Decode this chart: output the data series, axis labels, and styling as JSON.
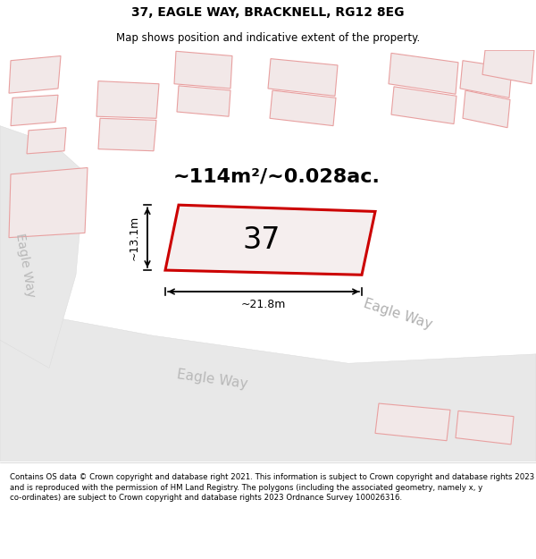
{
  "title": "37, EAGLE WAY, BRACKNELL, RG12 8EG",
  "subtitle": "Map shows position and indicative extent of the property.",
  "footer": "Contains OS data © Crown copyright and database right 2021. This information is subject to Crown copyright and database rights 2023 and is reproduced with the permission of HM Land Registry. The polygons (including the associated geometry, namely x, y co-ordinates) are subject to Crown copyright and database rights 2023 Ordnance Survey 100026316.",
  "area_label": "~114m²/~0.028ac.",
  "number_label": "37",
  "width_label": "~21.8m",
  "height_label": "~13.1m",
  "bg_color": "#ffffff",
  "road_fill": "#e0e0e0",
  "building_fill": "#f2e8e8",
  "building_stroke": "#e8a0a0",
  "highlight_fill": "#f5eeee",
  "highlight_stroke": "#cc0000",
  "title_fontsize": 10,
  "subtitle_fontsize": 8.5,
  "footer_fontsize": 6.2,
  "area_fontsize": 16,
  "number_fontsize": 24,
  "dim_fontsize": 9,
  "road_label_fontsize": 11
}
